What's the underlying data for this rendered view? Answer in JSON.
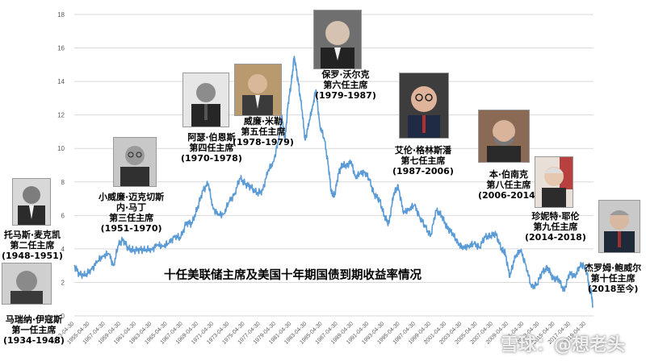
{
  "chart_data": {
    "type": "line",
    "title": "十任美联储主席及美国十年期国债到期收益率情况",
    "xlabel": "",
    "ylabel": "",
    "ylim": [
      0,
      18
    ],
    "yticks": [
      0,
      2,
      4,
      6,
      8,
      10,
      12,
      14,
      16,
      18
    ],
    "xticks": [
      "1953-04-30",
      "1955-04-30",
      "1957-04-30",
      "1959-04-30",
      "1961-04-30",
      "1963-04-30",
      "1965-04-30",
      "1967-04-30",
      "1969-04-30",
      "1971-04-30",
      "1973-04-30",
      "1975-04-30",
      "1977-04-30",
      "1979-04-30",
      "1981-04-30",
      "1983-04-30",
      "1985-04-30",
      "1987-04-30",
      "1989-04-30",
      "1991-04-30",
      "1993-04-30",
      "1995-04-30",
      "1997-04-30",
      "1999-04-30",
      "2001-04-30",
      "2003-04-30",
      "2005-04-30",
      "2007-04-30",
      "2009-04-30",
      "2011-04-30",
      "2013-04-30",
      "2015-04-30",
      "2017-04-30",
      "2019-04-30"
    ],
    "grid": "horizontal",
    "legend": "none",
    "series_color": "#5b9bd5",
    "series": [
      {
        "x": [
          1953.33,
          1954.0,
          1954.8,
          1955.5,
          1956.3,
          1957.0,
          1957.8,
          1958.4,
          1959.0,
          1959.6,
          1960.3,
          1961.0,
          1961.8,
          1962.5,
          1963.3,
          1964.0,
          1964.8,
          1965.5,
          1966.3,
          1967.0,
          1967.8,
          1968.5,
          1969.2,
          1969.9,
          1970.6,
          1971.2,
          1971.9,
          1972.6,
          1973.3,
          1974.0,
          1974.7,
          1975.4,
          1976.1,
          1976.9,
          1977.6,
          1978.3,
          1979.0,
          1979.7,
          1980.1,
          1980.5,
          1980.9,
          1981.3,
          1981.7,
          1982.2,
          1982.7,
          1983.1,
          1983.6,
          1984.1,
          1984.5,
          1985.0,
          1985.6,
          1986.1,
          1986.5,
          1986.9,
          1987.4,
          1987.9,
          1988.5,
          1989.0,
          1989.6,
          1990.2,
          1990.8,
          1991.4,
          1992.0,
          1992.7,
          1993.3,
          1993.9,
          1994.5,
          1995.1,
          1995.8,
          1996.5,
          1997.2,
          1997.9,
          1998.6,
          1999.3,
          2000.0,
          2000.7,
          2001.4,
          2002.1,
          2002.8,
          2003.5,
          2004.2,
          2004.9,
          2005.6,
          2006.3,
          2007.0,
          2007.7,
          2008.4,
          2008.9,
          2009.5,
          2010.2,
          2010.9,
          2011.6,
          2012.3,
          2013.0,
          2013.7,
          2014.4,
          2015.1,
          2015.8,
          2016.5,
          2017.2,
          2017.9,
          2018.6,
          2019.1,
          2019.5,
          2019.8,
          2020.0,
          2020.2
        ],
        "values": [
          3.0,
          2.5,
          2.4,
          2.8,
          3.2,
          3.6,
          3.7,
          3.0,
          4.2,
          4.6,
          4.0,
          3.9,
          4.0,
          3.9,
          4.0,
          4.2,
          4.2,
          4.3,
          4.8,
          4.6,
          5.6,
          5.5,
          6.4,
          7.5,
          7.9,
          6.5,
          6.0,
          6.1,
          6.8,
          7.3,
          8.2,
          7.9,
          7.7,
          7.3,
          7.5,
          8.6,
          9.2,
          10.5,
          12.0,
          10.4,
          12.7,
          13.8,
          15.5,
          14.0,
          12.3,
          10.5,
          11.5,
          12.6,
          13.5,
          11.4,
          10.5,
          9.0,
          7.3,
          7.2,
          8.5,
          9.0,
          9.0,
          9.2,
          8.3,
          8.5,
          8.6,
          8.1,
          7.3,
          6.9,
          6.0,
          5.5,
          7.2,
          7.8,
          6.1,
          6.4,
          6.6,
          5.9,
          5.3,
          4.8,
          6.3,
          6.0,
          5.3,
          4.9,
          4.4,
          4.0,
          4.2,
          4.3,
          4.1,
          4.7,
          4.8,
          4.9,
          4.0,
          3.8,
          2.3,
          3.6,
          3.9,
          3.0,
          1.7,
          1.9,
          2.6,
          2.9,
          2.2,
          2.2,
          1.5,
          2.5,
          2.4,
          3.0,
          3.0,
          2.5,
          1.5,
          1.5,
          0.6
        ]
      }
    ]
  },
  "chairs": [
    {
      "name": "马瑞纳·伊寇斯",
      "role": "第一任主席",
      "term": "(1934-1948)"
    },
    {
      "name": "托马斯·麦克凯",
      "role": "第二任主席",
      "term": "(1948-1951)"
    },
    {
      "name": "小威廉·迈克切斯",
      "name2": "内·马丁",
      "role": "第三任主席",
      "term": "(1951-1970)"
    },
    {
      "name": "阿瑟·伯恩斯",
      "role": "第四任主席",
      "term": "(1970-1978)"
    },
    {
      "name": "威廉·米勒",
      "role": "第五任主席",
      "term": "(1978-1979)"
    },
    {
      "name": "保罗·沃尔克",
      "role": "第六任主席",
      "term": "(1979-1987)"
    },
    {
      "name": "艾伦·格林斯潘",
      "role": "第七任主席",
      "term": "(1987-2006)"
    },
    {
      "name": "本·伯南克",
      "role": "第八任主席",
      "term": "(2006-2014)"
    },
    {
      "name": "珍妮特·耶伦",
      "role": "第九任主席",
      "term": "(2014-2018)"
    },
    {
      "name": "杰罗姆·鲍威尔",
      "role": "第十任主席",
      "term": "(2018至今)"
    }
  ],
  "watermark": "雪球：@想老头",
  "colors": {
    "line": "#5b9bd5",
    "grid": "#d9d9d9",
    "tick": "#595959"
  }
}
